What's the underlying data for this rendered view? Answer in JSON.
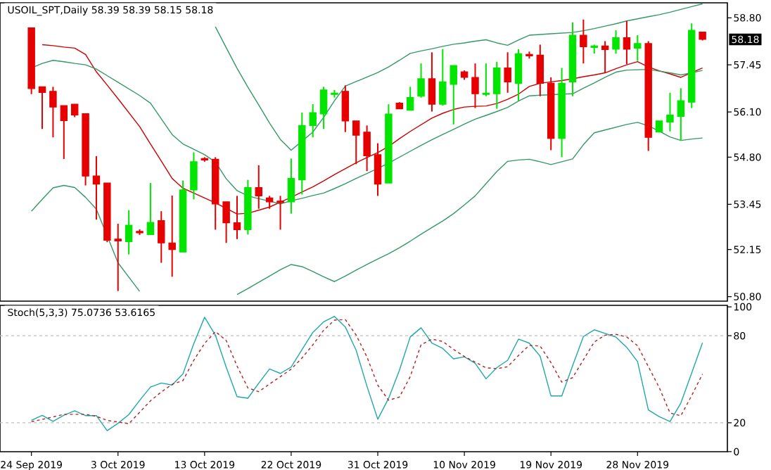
{
  "chart_data": [
    {
      "type": "candlestick",
      "title": "USOIL_SPT,Daily 58.39 58.39 58.15 58.18",
      "tick_labels": "y",
      "categories": [
        null,
        null,
        null,
        null,
        null,
        null,
        null,
        null,
        null,
        null,
        null,
        null,
        null,
        null,
        null,
        null,
        null,
        null,
        null,
        null,
        null,
        null,
        null,
        null,
        null,
        null,
        null,
        null,
        null,
        null,
        null,
        null,
        null,
        null,
        null,
        null,
        null,
        null,
        null,
        null,
        null,
        null,
        null,
        null,
        null,
        null,
        null,
        null,
        null,
        null,
        null,
        null,
        null,
        null,
        null,
        null,
        null,
        null,
        null,
        null,
        null,
        null,
        null
      ],
      "ohlc": [
        [
          58.51,
          58.51,
          56.61,
          56.77
        ],
        [
          56.82,
          56.82,
          55.61,
          56.66
        ],
        [
          56.69,
          56.82,
          55.37,
          56.24
        ],
        [
          56.28,
          56.28,
          54.75,
          55.85
        ],
        [
          56.32,
          56.32,
          55.95,
          56.01
        ],
        [
          56.05,
          56.05,
          53.99,
          54.26
        ],
        [
          54.26,
          54.83,
          53.01,
          54.03
        ],
        [
          54.06,
          54.06,
          52.36,
          52.42
        ],
        [
          52.45,
          52.89,
          50.96,
          52.4
        ],
        [
          52.38,
          53.28,
          52.01,
          52.85
        ],
        [
          52.67,
          52.73,
          52.57,
          52.63
        ],
        [
          52.58,
          54.06,
          52.58,
          52.93
        ],
        [
          52.98,
          53.25,
          51.77,
          52.34
        ],
        [
          52.34,
          53.7,
          51.37,
          52.15
        ],
        [
          52.08,
          54.13,
          52.08,
          53.86
        ],
        [
          53.86,
          54.94,
          53.59,
          54.67
        ],
        [
          54.76,
          54.8,
          54.67,
          54.72
        ],
        [
          54.74,
          54.8,
          52.72,
          53.46
        ],
        [
          53.52,
          53.52,
          52.34,
          52.92
        ],
        [
          52.92,
          53.69,
          52.45,
          52.72
        ],
        [
          52.72,
          54.15,
          52.58,
          53.93
        ],
        [
          53.93,
          54.57,
          53.32,
          53.69
        ],
        [
          53.63,
          53.69,
          53.32,
          53.52
        ],
        [
          53.54,
          53.69,
          52.72,
          53.5
        ],
        [
          53.52,
          54.76,
          53.18,
          54.19
        ],
        [
          54.15,
          56.08,
          53.73,
          55.71
        ],
        [
          55.71,
          56.32,
          55.37,
          56.08
        ],
        [
          56.04,
          56.82,
          55.61,
          56.73
        ],
        [
          56.6,
          56.73,
          56.51,
          56.64
        ],
        [
          56.69,
          56.86,
          55.52,
          55.84
        ],
        [
          55.84,
          55.84,
          54.6,
          55.43
        ],
        [
          55.52,
          55.71,
          54.4,
          54.84
        ],
        [
          54.87,
          55.2,
          53.69,
          54.03
        ],
        [
          54.06,
          56.32,
          54.06,
          56.04
        ],
        [
          56.35,
          56.38,
          56.19,
          56.19
        ],
        [
          56.15,
          56.82,
          56.15,
          56.51
        ],
        [
          56.55,
          57.49,
          56.51,
          57.05
        ],
        [
          57.05,
          57.81,
          56.11,
          56.32
        ],
        [
          56.32,
          57.9,
          56.28,
          56.96
        ],
        [
          56.89,
          57.43,
          55.74,
          57.43
        ],
        [
          57.25,
          57.29,
          57.02,
          57.09
        ],
        [
          57.09,
          57.49,
          56.21,
          56.62
        ],
        [
          56.6,
          57.49,
          56.55,
          56.64
        ],
        [
          56.62,
          57.54,
          56.19,
          57.36
        ],
        [
          57.36,
          57.81,
          56.65,
          56.96
        ],
        [
          56.92,
          57.9,
          56.42,
          57.77
        ],
        [
          57.75,
          57.83,
          57.63,
          57.71
        ],
        [
          57.73,
          58.03,
          56.55,
          56.92
        ],
        [
          56.92,
          57.09,
          55.0,
          55.34
        ],
        [
          55.34,
          57.36,
          54.8,
          56.92
        ],
        [
          56.96,
          58.67,
          56.55,
          58.3
        ],
        [
          58.3,
          58.75,
          57.49,
          57.97
        ],
        [
          57.95,
          58.03,
          57.77,
          57.99
        ],
        [
          57.99,
          58.13,
          57.22,
          57.89
        ],
        [
          57.9,
          58.44,
          57.77,
          58.23
        ],
        [
          58.23,
          58.71,
          57.47,
          57.9
        ],
        [
          57.93,
          58.3,
          57.56,
          58.06
        ],
        [
          58.06,
          58.13,
          54.98,
          55.37
        ],
        [
          55.52,
          55.84,
          55.52,
          55.84
        ],
        [
          55.81,
          56.65,
          55.54,
          56.01
        ],
        [
          55.97,
          56.78,
          55.27,
          56.42
        ],
        [
          56.38,
          58.64,
          56.21,
          58.44
        ],
        [
          58.39,
          58.39,
          58.15,
          58.18
        ]
      ],
      "series": [
        {
          "type": "line",
          "color": "#339966",
          "values": [
            null,
            null,
            null,
            null,
            null,
            null,
            null,
            null,
            null,
            null,
            null,
            null,
            null,
            null,
            null,
            null,
            null,
            58.54,
            57.94,
            57.35,
            56.81,
            56.3,
            55.78,
            55.31,
            55.0,
            55.26,
            55.52,
            55.94,
            56.42,
            56.84,
            56.97,
            57.1,
            57.23,
            57.39,
            57.58,
            57.78,
            57.85,
            57.91,
            57.98,
            58.04,
            58.08,
            58.13,
            58.17,
            58.08,
            58.01,
            58.16,
            58.3,
            58.32,
            58.34,
            58.36,
            58.38,
            58.43,
            58.49,
            58.56,
            58.63,
            58.71,
            58.77,
            58.83,
            58.89,
            58.96,
            59.04,
            59.12,
            59.2
          ]
        },
        {
          "type": "line",
          "color": "#cc0000",
          "values": [
            null,
            58.03,
            58.0,
            57.96,
            57.93,
            57.75,
            57.25,
            56.87,
            56.48,
            56.08,
            55.68,
            55.18,
            54.69,
            54.19,
            53.91,
            53.77,
            53.63,
            53.49,
            53.33,
            53.17,
            53.19,
            53.28,
            53.37,
            53.51,
            53.65,
            53.8,
            53.95,
            54.12,
            54.3,
            54.47,
            54.64,
            54.79,
            54.93,
            55.11,
            55.33,
            55.54,
            55.73,
            55.92,
            56.06,
            56.17,
            56.24,
            56.26,
            56.27,
            56.34,
            56.46,
            56.61,
            56.83,
            56.92,
            56.96,
            57.0,
            57.05,
            57.11,
            57.16,
            57.22,
            57.34,
            57.45,
            57.54,
            57.39,
            57.28,
            57.19,
            57.09,
            57.23,
            57.36
          ]
        },
        {
          "type": "line",
          "color": "#339966",
          "values": [
            57.36,
            57.49,
            57.58,
            57.54,
            57.49,
            57.45,
            57.33,
            57.14,
            56.95,
            56.76,
            56.57,
            56.35,
            55.9,
            55.45,
            55.18,
            55.03,
            54.87,
            54.66,
            54.18,
            53.84,
            53.69,
            53.61,
            53.54,
            53.46,
            53.55,
            53.62,
            53.7,
            53.77,
            53.9,
            54.04,
            54.19,
            54.33,
            54.48,
            54.63,
            54.8,
            54.97,
            55.14,
            55.3,
            55.45,
            55.6,
            55.75,
            55.89,
            56.0,
            56.11,
            56.23,
            56.41,
            56.56,
            56.58,
            56.59,
            56.61,
            56.62,
            56.78,
            56.93,
            57.09,
            57.24,
            57.3,
            57.31,
            57.32,
            57.27,
            57.22,
            57.16,
            57.22,
            57.29
          ]
        },
        {
          "type": "line",
          "color": "#339966",
          "values": [
            53.25,
            53.59,
            53.92,
            53.99,
            53.93,
            53.65,
            53.31,
            52.54,
            51.77,
            51.36,
            50.95,
            null,
            null,
            null,
            null,
            null,
            null,
            null,
            null,
            50.86,
            51.03,
            51.21,
            51.39,
            51.57,
            51.72,
            51.66,
            51.52,
            51.37,
            51.23,
            51.39,
            51.56,
            51.72,
            51.88,
            52.03,
            52.2,
            52.39,
            52.59,
            52.78,
            52.97,
            53.18,
            53.43,
            53.69,
            54.04,
            54.39,
            54.68,
            54.72,
            54.74,
            54.67,
            54.59,
            54.67,
            54.75,
            55.16,
            55.5,
            55.58,
            55.66,
            55.74,
            55.8,
            55.7,
            55.55,
            55.38,
            55.28,
            55.32,
            55.35
          ]
        }
      ],
      "ylim": [
        50.67,
        59.23
      ],
      "yticks": [
        {
          "value": 58.8,
          "label": "58.80"
        },
        {
          "value": 57.45,
          "label": "57.45"
        },
        {
          "value": 56.1,
          "label": "56.10"
        },
        {
          "value": 54.8,
          "label": "54.80"
        },
        {
          "value": 53.45,
          "label": "53.45"
        },
        {
          "value": 52.15,
          "label": "52.15"
        },
        {
          "value": 50.8,
          "label": "50.80"
        }
      ],
      "annotations": [
        "58.18"
      ]
    },
    {
      "type": "line",
      "title": "Stoch(5,3,3) 75.0736 53.6165",
      "categories": [
        "24 Sep 2019",
        null,
        null,
        null,
        null,
        null,
        null,
        null,
        "3 Oct 2019",
        null,
        null,
        null,
        null,
        null,
        null,
        null,
        "13 Oct 2019",
        null,
        null,
        null,
        null,
        null,
        null,
        null,
        "22 Oct 2019",
        null,
        null,
        null,
        null,
        null,
        null,
        null,
        "31 Oct 2019",
        null,
        null,
        null,
        null,
        null,
        null,
        null,
        "10 Nov 2019",
        null,
        null,
        null,
        null,
        null,
        null,
        null,
        "19 Nov 2019",
        null,
        null,
        null,
        null,
        null,
        null,
        null,
        "28 Nov 2019",
        null,
        null,
        null,
        null,
        null,
        null
      ],
      "series": [
        {
          "color": "#20a8a8",
          "line_style": "solid",
          "values": [
            21.7,
            25.1,
            20.9,
            25.2,
            28.2,
            24.9,
            24.9,
            14.5,
            19.6,
            25.6,
            35.4,
            44.6,
            47.4,
            46.0,
            53.7,
            74.5,
            92.8,
            80.4,
            58.3,
            38.0,
            36.9,
            47.3,
            57.1,
            54.0,
            58.4,
            70.5,
            82.3,
            89.6,
            93.4,
            86.1,
            70.0,
            45.2,
            22.4,
            36.8,
            56.2,
            79.2,
            85.5,
            75.0,
            71.3,
            64.1,
            65.5,
            61.0,
            50.3,
            58.0,
            63.1,
            77.7,
            74.9,
            65.9,
            38.5,
            38.5,
            59.3,
            79.5,
            84.1,
            81.6,
            79.1,
            72.0,
            62.2,
            28.8,
            24.2,
            20.8,
            33.6,
            54.3,
            75.1
          ]
        },
        {
          "color": "#b22222",
          "line_style": "dashed",
          "values": [
            20.7,
            22.3,
            24.0,
            25.8,
            25.8,
            25.8,
            24.4,
            21.6,
            20.5,
            19.3,
            27.2,
            35.1,
            41.2,
            46.5,
            49.1,
            63.1,
            74.7,
            82.9,
            76.7,
            59.1,
            44.0,
            41.4,
            46.7,
            51.8,
            57.0,
            64.7,
            73.7,
            83.8,
            90.8,
            91.2,
            80.5,
            65.4,
            45.9,
            35.5,
            37.7,
            51.8,
            73.8,
            77.7,
            76.1,
            70.6,
            65.7,
            61.8,
            57.9,
            57.3,
            58.6,
            66.4,
            73.4,
            72.9,
            61.5,
            48.0,
            51.1,
            63.4,
            75.7,
            80.4,
            81.0,
            79.2,
            73.2,
            58.7,
            44.3,
            26.7,
            24.8,
            38.7,
            53.6
          ]
        }
      ],
      "ylim": [
        0,
        101
      ],
      "yticks": [
        0,
        20,
        80,
        100
      ],
      "ref_lines": [
        {
          "axis": "y",
          "value": 20,
          "color": "#c0c0c0",
          "line_style": "dashed"
        },
        {
          "axis": "y",
          "value": 80,
          "color": "#c0c0c0",
          "line_style": "dashed"
        }
      ]
    }
  ]
}
